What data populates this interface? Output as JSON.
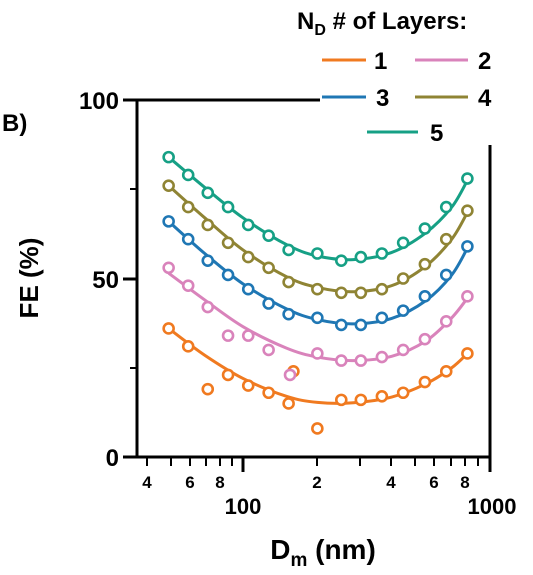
{
  "chart_data": {
    "type": "scatter",
    "panel_label": "B)",
    "ylabel": "FE (%)",
    "xlabel_main": "D",
    "xlabel_sub": "m",
    "xlabel_unit": " (nm)",
    "xscale": "log",
    "xlim": [
      40,
      1000
    ],
    "ylim": [
      0,
      100
    ],
    "y_ticks": [
      "0",
      "50",
      "100"
    ],
    "x_major_ticks": [
      "100",
      "1000"
    ],
    "x_minor_ticks": [
      "4",
      "6",
      "8",
      "2",
      "4",
      "6",
      "8"
    ],
    "legend": {
      "title_main": "N",
      "title_sub": "D",
      "title_rest": " # of Layers:",
      "placement": "top-right"
    },
    "series": [
      {
        "name": "1",
        "color": "#f07a20",
        "x": [
          50,
          60,
          72,
          87,
          105,
          127,
          153,
          160,
          200,
          250,
          300,
          365,
          445,
          545,
          665,
          810
        ],
        "y": [
          36,
          31,
          19,
          23,
          20,
          18,
          15,
          24,
          8,
          16,
          16,
          17,
          18,
          21,
          24,
          29
        ],
        "fit_x": [
          50,
          70,
          100,
          150,
          200,
          280,
          400,
          550,
          700,
          810
        ],
        "fit_y": [
          36,
          28.5,
          22,
          17,
          15.3,
          15.2,
          16.8,
          20.5,
          25,
          29
        ]
      },
      {
        "name": "2",
        "color": "#d983bb",
        "x": [
          50,
          60,
          72,
          87,
          105,
          127,
          155,
          200,
          250,
          300,
          365,
          445,
          545,
          665,
          810
        ],
        "y": [
          53,
          48,
          42,
          34,
          34,
          30,
          23,
          29,
          27,
          27,
          28,
          30,
          33,
          38,
          45
        ],
        "fit_x": [
          50,
          70,
          100,
          150,
          200,
          280,
          400,
          550,
          700,
          810
        ],
        "fit_y": [
          51.5,
          44,
          36.5,
          30.5,
          28,
          27,
          28.2,
          32.5,
          39,
          44.5
        ]
      },
      {
        "name": "3",
        "color": "#1f77b4",
        "x": [
          50,
          60,
          72,
          87,
          105,
          127,
          153,
          200,
          250,
          300,
          365,
          445,
          545,
          665,
          810
        ],
        "y": [
          66,
          61,
          55,
          51,
          47,
          43,
          40,
          39,
          37,
          37,
          39,
          41,
          45,
          51,
          59
        ],
        "fit_x": [
          50,
          70,
          100,
          150,
          200,
          280,
          400,
          550,
          700,
          810
        ],
        "fit_y": [
          66,
          57,
          48.5,
          41.5,
          38.5,
          37.3,
          38.8,
          43.8,
          51,
          58.5
        ]
      },
      {
        "name": "4",
        "color": "#8f8434",
        "x": [
          50,
          60,
          72,
          87,
          105,
          127,
          153,
          200,
          250,
          300,
          365,
          445,
          545,
          665,
          810
        ],
        "y": [
          76,
          70,
          65,
          60,
          56,
          53,
          49,
          47,
          46,
          46,
          47,
          50,
          54,
          61,
          69
        ],
        "fit_x": [
          50,
          70,
          100,
          150,
          200,
          280,
          400,
          550,
          700,
          810
        ],
        "fit_y": [
          76,
          67,
          58,
          50.5,
          47.5,
          46.3,
          48,
          53.5,
          61,
          68.5
        ]
      },
      {
        "name": "5",
        "color": "#16a085",
        "x": [
          50,
          60,
          72,
          87,
          105,
          127,
          153,
          200,
          250,
          300,
          365,
          445,
          545,
          665,
          810
        ],
        "y": [
          84,
          79,
          74,
          70,
          65,
          62,
          58,
          57,
          55,
          56,
          57,
          60,
          64,
          70,
          78
        ],
        "fit_x": [
          50,
          70,
          100,
          150,
          200,
          280,
          400,
          550,
          700,
          810
        ],
        "fit_y": [
          84,
          75.5,
          67,
          59.5,
          56.3,
          55.3,
          57.3,
          62.8,
          70,
          77.5
        ]
      }
    ]
  }
}
